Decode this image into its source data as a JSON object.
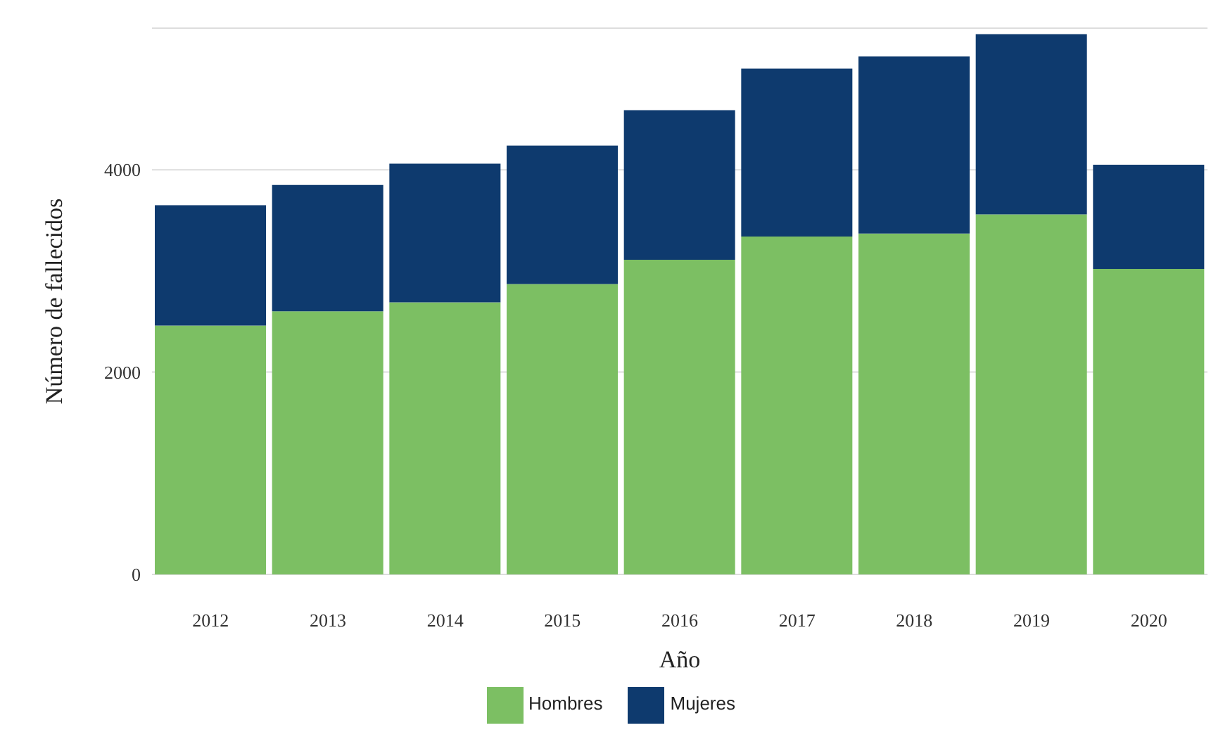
{
  "chart_data": {
    "type": "bar",
    "stacked": true,
    "xlabel": "Año",
    "ylabel": "Número de fallecidos",
    "categories": [
      "2012",
      "2013",
      "2014",
      "2015",
      "2016",
      "2017",
      "2018",
      "2019",
      "2020"
    ],
    "series": [
      {
        "name": "Hombres",
        "color": "#7cbf63",
        "values": [
          2460,
          2600,
          2690,
          2870,
          3110,
          3340,
          3370,
          3560,
          3020
        ]
      },
      {
        "name": "Mujeres",
        "color": "#0e3a6e",
        "values": [
          1190,
          1250,
          1370,
          1370,
          1480,
          1660,
          1750,
          1780,
          1030
        ]
      }
    ],
    "ylim": [
      0,
      5400
    ],
    "yticks": [
      0,
      2000,
      4000
    ],
    "grid": "y",
    "legend": "bottom"
  }
}
